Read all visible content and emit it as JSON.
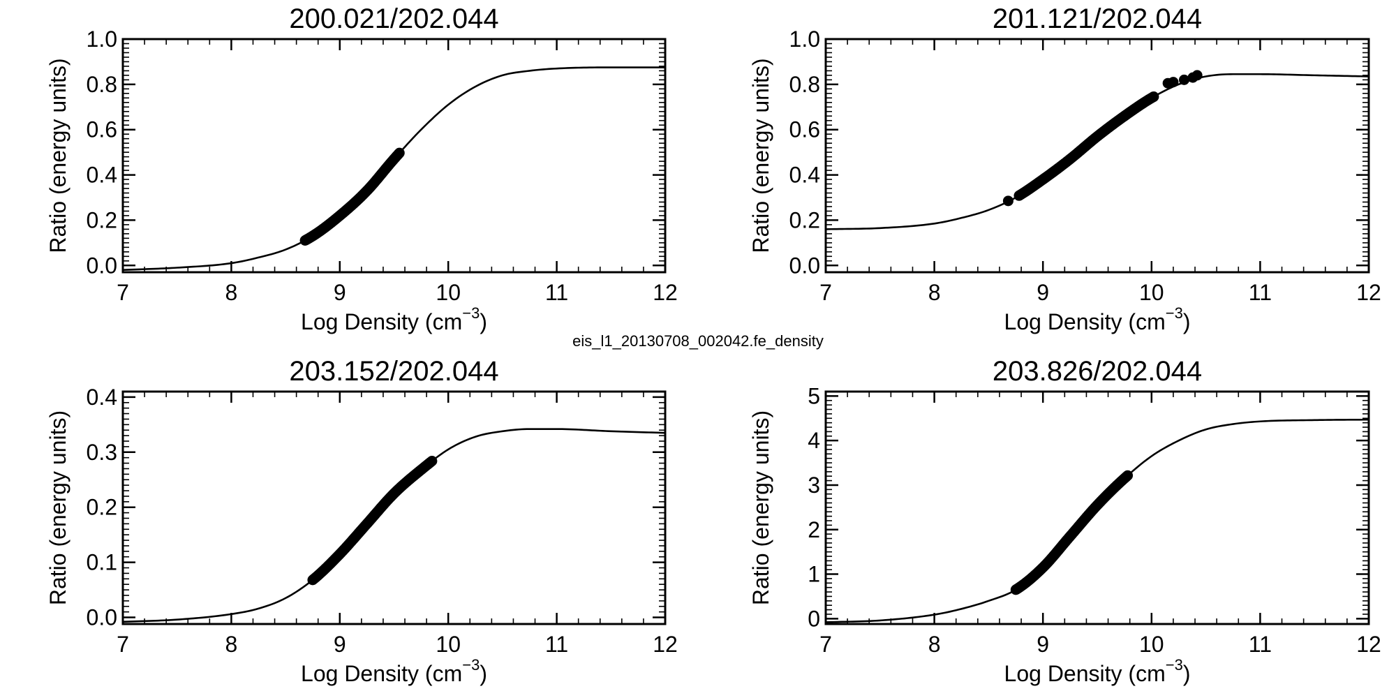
{
  "figure": {
    "center_label": "eis_l1_20130708_002042.fe_density"
  },
  "chart_data": [
    {
      "type": "line",
      "title": "200.021/202.044",
      "xlabel_main": "Log Density (cm",
      "xlabel_sup": "−3",
      "xlabel_close": ")",
      "ylabel": "Ratio (energy units)",
      "xlim": [
        7,
        12
      ],
      "ylim": [
        -0.03,
        1.0
      ],
      "xticks": [
        7,
        8,
        9,
        10,
        11,
        12
      ],
      "yticks": [
        0.0,
        0.2,
        0.4,
        0.6,
        0.8,
        1.0
      ],
      "ytick_labels": [
        "0.0",
        "0.2",
        "0.4",
        "0.6",
        "0.8",
        "1.0"
      ],
      "curve": {
        "x": [
          7.0,
          7.5,
          8.0,
          8.25,
          8.5,
          8.75,
          9.0,
          9.25,
          9.5,
          9.75,
          10.0,
          10.25,
          10.5,
          10.75,
          11.0,
          11.5,
          12.0
        ],
        "y": [
          -0.02,
          -0.01,
          0.01,
          0.035,
          0.07,
          0.13,
          0.22,
          0.33,
          0.47,
          0.6,
          0.71,
          0.79,
          0.84,
          0.86,
          0.87,
          0.875,
          0.875
        ]
      },
      "highlight_range": [
        8.68,
        9.55
      ]
    },
    {
      "type": "line",
      "title": "201.121/202.044",
      "xlabel_main": "Log Density (cm",
      "xlabel_sup": "−3",
      "xlabel_close": ")",
      "ylabel": "Ratio (energy units)",
      "xlim": [
        7,
        12
      ],
      "ylim": [
        -0.03,
        1.0
      ],
      "xticks": [
        7,
        8,
        9,
        10,
        11,
        12
      ],
      "yticks": [
        0.0,
        0.2,
        0.4,
        0.6,
        0.8,
        1.0
      ],
      "ytick_labels": [
        "0.0",
        "0.2",
        "0.4",
        "0.6",
        "0.8",
        "1.0"
      ],
      "curve": {
        "x": [
          7.0,
          7.5,
          8.0,
          8.25,
          8.5,
          8.75,
          9.0,
          9.25,
          9.5,
          9.75,
          10.0,
          10.25,
          10.5,
          10.75,
          11.0,
          11.5,
          12.0
        ],
        "y": [
          0.16,
          0.165,
          0.185,
          0.21,
          0.245,
          0.3,
          0.38,
          0.47,
          0.57,
          0.66,
          0.74,
          0.8,
          0.835,
          0.845,
          0.845,
          0.84,
          0.835
        ]
      },
      "highlight_range": [
        8.78,
        10.02
      ],
      "extra_points": {
        "x": [
          8.68,
          10.15,
          10.2,
          10.3,
          10.38,
          10.42
        ],
        "y": [
          0.285,
          0.805,
          0.81,
          0.82,
          0.83,
          0.84
        ]
      }
    },
    {
      "type": "line",
      "title": "203.152/202.044",
      "xlabel_main": "Log Density (cm",
      "xlabel_sup": "−3",
      "xlabel_close": ")",
      "ylabel": "Ratio (energy units)",
      "xlim": [
        7,
        12
      ],
      "ylim": [
        -0.012,
        0.41
      ],
      "xticks": [
        7,
        8,
        9,
        10,
        11,
        12
      ],
      "yticks": [
        0.0,
        0.1,
        0.2,
        0.3,
        0.4
      ],
      "ytick_labels": [
        "0.0",
        "0.1",
        "0.2",
        "0.3",
        "0.4"
      ],
      "curve": {
        "x": [
          7.0,
          7.5,
          8.0,
          8.25,
          8.5,
          8.75,
          9.0,
          9.25,
          9.5,
          9.75,
          10.0,
          10.25,
          10.5,
          10.75,
          11.0,
          11.5,
          12.0
        ],
        "y": [
          -0.008,
          -0.004,
          0.006,
          0.016,
          0.035,
          0.068,
          0.115,
          0.17,
          0.225,
          0.268,
          0.305,
          0.328,
          0.338,
          0.342,
          0.342,
          0.338,
          0.335
        ]
      },
      "highlight_range": [
        8.75,
        9.85
      ]
    },
    {
      "type": "line",
      "title": "203.826/202.044",
      "xlabel_main": "Log Density (cm",
      "xlabel_sup": "−3",
      "xlabel_close": ")",
      "ylabel": "Ratio (energy units)",
      "xlim": [
        7,
        12
      ],
      "ylim": [
        -0.12,
        5.1
      ],
      "xticks": [
        7,
        8,
        9,
        10,
        11,
        12
      ],
      "yticks": [
        0,
        1,
        2,
        3,
        4,
        5
      ],
      "ytick_labels": [
        "0",
        "1",
        "2",
        "3",
        "4",
        "5"
      ],
      "curve": {
        "x": [
          7.0,
          7.5,
          8.0,
          8.25,
          8.5,
          8.75,
          9.0,
          9.25,
          9.5,
          9.75,
          10.0,
          10.25,
          10.5,
          10.75,
          11.0,
          11.5,
          12.0
        ],
        "y": [
          -0.08,
          -0.04,
          0.09,
          0.22,
          0.4,
          0.65,
          1.15,
          1.85,
          2.55,
          3.15,
          3.65,
          4.0,
          4.25,
          4.37,
          4.43,
          4.46,
          4.47
        ]
      },
      "highlight_range": [
        8.75,
        9.78
      ]
    }
  ]
}
